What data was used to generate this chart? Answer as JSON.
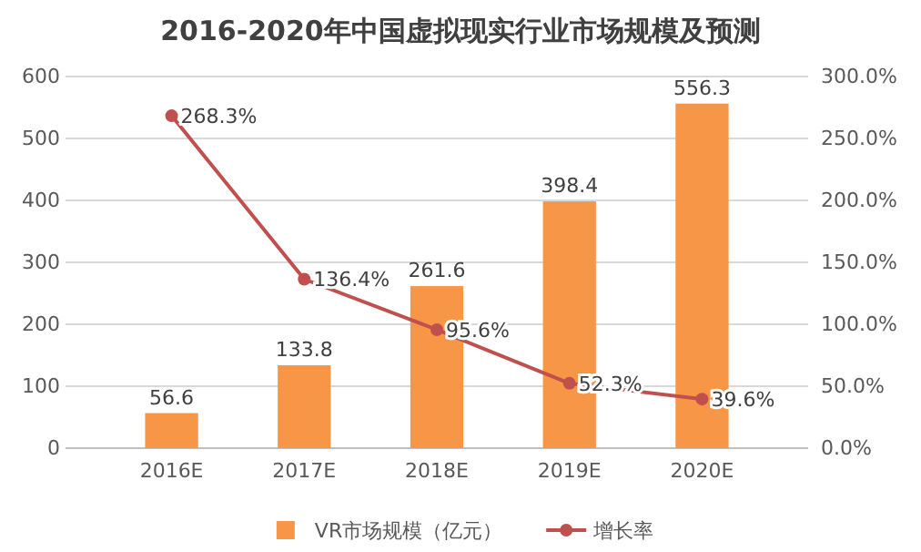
{
  "chart_data": {
    "type": "bar",
    "title": "2016-2020年中国虚拟现实行业市场规模及预测",
    "categories": [
      "2016E",
      "2017E",
      "2018E",
      "2019E",
      "2020E"
    ],
    "series": [
      {
        "name": "VR市场规模（亿元）",
        "color": "#f79646",
        "values": [
          56.6,
          133.8,
          261.6,
          398.4,
          556.3
        ],
        "value_labels": [
          "56.6",
          "133.8",
          "261.6",
          "398.4",
          "556.3"
        ]
      },
      {
        "name": "增长率",
        "type": "line",
        "axis": "y2",
        "color": "#c0504d",
        "values": [
          268.3,
          136.4,
          95.6,
          52.3,
          39.6
        ],
        "value_labels": [
          "268.3%",
          "136.4%",
          "95.6%",
          "52.3%",
          "39.6%"
        ]
      }
    ],
    "ylim": [
      0,
      600
    ],
    "yticks": [
      0,
      100,
      200,
      300,
      400,
      500,
      600
    ],
    "y2lim": [
      0,
      300
    ],
    "y2ticks": [
      {
        "value": 0,
        "label": "0.0%"
      },
      {
        "value": 50,
        "label": "50.0%"
      },
      {
        "value": 100,
        "label": "100.0%"
      },
      {
        "value": 150,
        "label": "150.0%"
      },
      {
        "value": 200,
        "label": "200.0%"
      },
      {
        "value": 250,
        "label": "250.0%"
      },
      {
        "value": 300,
        "label": "300.0%"
      }
    ],
    "grid": "y",
    "legend": "bottom",
    "marker": "circle",
    "line_style": "solid"
  }
}
